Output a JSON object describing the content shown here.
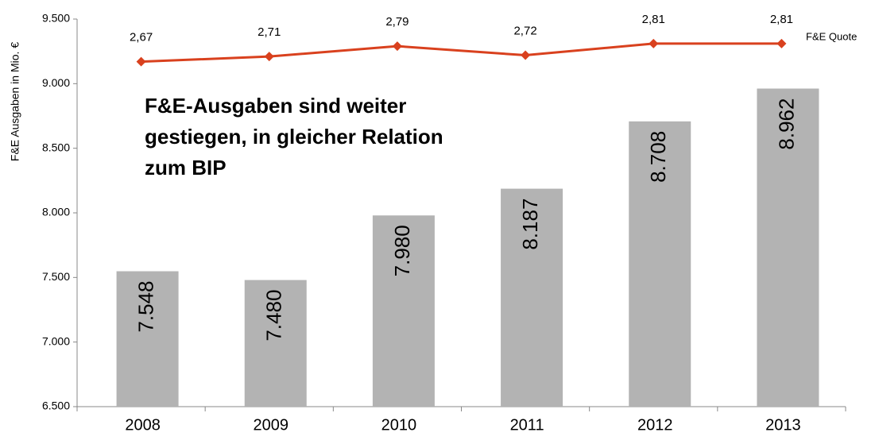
{
  "chart_data": {
    "type": "bar_line",
    "y_axis_label": "F&E Ausgaben in Mio. €",
    "annotation": [
      "F&E-Ausgaben sind weiter",
      "gestiegen, in gleicher Relation",
      "zum BIP"
    ],
    "categories": [
      "2008",
      "2009",
      "2010",
      "2011",
      "2012",
      "2013"
    ],
    "series": [
      {
        "name": "F&E Ausgaben",
        "type": "bar",
        "color": "#b3b3b3",
        "values": [
          7548,
          7480,
          7980,
          8187,
          8708,
          8962
        ],
        "value_labels": [
          "7.548",
          "7.480",
          "7.980",
          "8.187",
          "8.708",
          "8.962"
        ]
      },
      {
        "name": "F&E Quote",
        "type": "line",
        "axis": "y2",
        "color": "#d9411e",
        "values": [
          2.67,
          2.71,
          2.79,
          2.72,
          2.81,
          2.81
        ],
        "value_labels": [
          "2,67",
          "2,71",
          "2,79",
          "2,72",
          "2,81",
          "2,81"
        ]
      }
    ],
    "ylim": [
      6500,
      9500
    ],
    "yticks": [
      {
        "value": 6500,
        "label": "6.500"
      },
      {
        "value": 7000,
        "label": "7.000"
      },
      {
        "value": 7500,
        "label": "7.500"
      },
      {
        "value": 8000,
        "label": "8.000"
      },
      {
        "value": 8500,
        "label": "8.500"
      },
      {
        "value": 9000,
        "label": "9.000"
      },
      {
        "value": 9500,
        "label": "9.500"
      }
    ],
    "y2lim": [
      0,
      3
    ],
    "grid": false
  }
}
